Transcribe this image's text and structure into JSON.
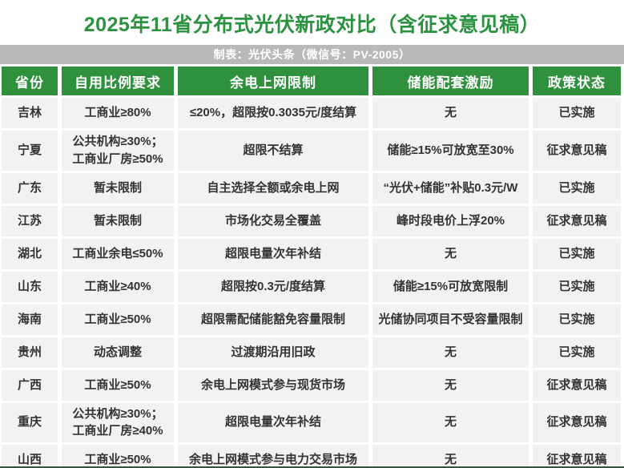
{
  "title": "2025年11省分布式光伏新政对比（含征求意见稿）",
  "credit": "制表：光伏头条（微信号：PV-2005）",
  "colors": {
    "title_green": "#2b9340",
    "header_green": "#2f913e",
    "gray_bar": "#b9b9b9",
    "cell_bg": "#f2f2f2",
    "text": "#333333"
  },
  "table": {
    "columns": [
      "省份",
      "自用比例要求",
      "余电上网限制",
      "储能配套激励",
      "政策状态"
    ],
    "column_keys": [
      "province",
      "self-use-requirement",
      "surplus-grid-limit",
      "storage-incentive",
      "policy-status"
    ],
    "rows": [
      {
        "cells": [
          "吉林",
          "工商业≥80%",
          "≤20%，超限按0.3035元/度结算",
          "无",
          "已实施"
        ]
      },
      {
        "cells": [
          "宁夏",
          "公共机构≥30%；\n工商业厂房≥50%",
          "超限不结算",
          "储能≥15%可放宽至30%",
          "征求意见稿"
        ]
      },
      {
        "cells": [
          "广东",
          "暂未限制",
          "自主选择全额或余电上网",
          "“光伏+储能”补贴0.3元/W",
          "已实施"
        ]
      },
      {
        "cells": [
          "江苏",
          "暂未限制",
          "市场化交易全覆盖",
          "峰时段电价上浮20%",
          "征求意见稿"
        ]
      },
      {
        "cells": [
          "湖北",
          "工商业余电≤50%",
          "超限电量次年补结",
          "无",
          "已实施"
        ]
      },
      {
        "cells": [
          "山东",
          "工商业≥40%",
          "超限按0.3元/度结算",
          "储能≥15%可放宽限制",
          "已实施"
        ]
      },
      {
        "cells": [
          "海南",
          "工商业≥50%",
          "超限需配储能豁免容量限制",
          "光储协同项目不受容量限制",
          "已实施"
        ]
      },
      {
        "cells": [
          "贵州",
          "动态调整",
          "过渡期沿用旧政",
          "无",
          "已实施"
        ]
      },
      {
        "cells": [
          "广西",
          "工商业≥50%",
          "余电上网模式参与现货市场",
          "无",
          "征求意见稿"
        ]
      },
      {
        "cells": [
          "重庆",
          "公共机构≥30%；\n工商业厂房≥40%",
          "超限电量次年补结",
          "无",
          "征求意见稿"
        ]
      },
      {
        "cells": [
          "山西",
          "工商业≥50%",
          "余电上网模式参与电力交易市场",
          "无",
          "征求意见稿"
        ]
      }
    ]
  }
}
